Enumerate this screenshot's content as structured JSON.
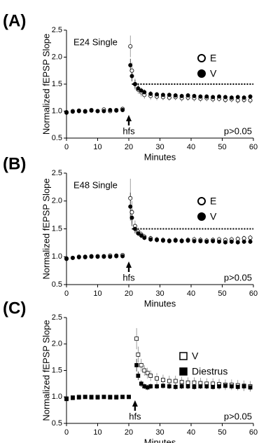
{
  "chart_data": [
    {
      "type": "scatter",
      "panel_label": "(A)",
      "subtitle": "E24 Single",
      "ylabel": "Normalized fEPSP Slope",
      "xlabel": "Minutes",
      "annotation": {
        "text": "hfs",
        "x": 20
      },
      "stat_text": "p>0.05",
      "threshold": 1.5,
      "threshold_xlim": [
        21,
        60
      ],
      "xlim": [
        0,
        60
      ],
      "ylim": [
        0.5,
        2.5
      ],
      "xticks": [
        0,
        10,
        20,
        30,
        40,
        50,
        60
      ],
      "yticks": [
        0.5,
        {
          "value": 1,
          "label": "1.0"
        },
        1.5,
        {
          "value": 2,
          "label": "2.0"
        },
        2.5
      ],
      "x": [
        0,
        2,
        4,
        6,
        8,
        10,
        12,
        14,
        16,
        18,
        20.5,
        21,
        22,
        23,
        24,
        25,
        27,
        29,
        31,
        33,
        35,
        37,
        39,
        41,
        43,
        45,
        47,
        49,
        51,
        53,
        55,
        57,
        59
      ],
      "series": [
        {
          "name": "E",
          "color": "#000000",
          "marker": "circle",
          "filled": false,
          "values": [
            0.98,
            1.0,
            1.01,
            0.99,
            1.02,
            1.0,
            1.03,
            1.0,
            1.02,
            1.04,
            2.2,
            1.75,
            1.5,
            1.4,
            1.35,
            1.3,
            1.28,
            1.27,
            1.26,
            1.25,
            1.26,
            1.24,
            1.25,
            1.24,
            1.23,
            1.24,
            1.22,
            1.23,
            1.21,
            1.22,
            1.2,
            1.21,
            1.2
          ],
          "errors": [
            0.03,
            0.03,
            0.03,
            0.03,
            0.03,
            0.03,
            0.03,
            0.03,
            0.03,
            0.03,
            0.2,
            0.15,
            0.1,
            0.08,
            0.08,
            0.07,
            0.07,
            0.07,
            0.06,
            0.06,
            0.06,
            0.06,
            0.06,
            0.06,
            0.06,
            0.06,
            0.06,
            0.06,
            0.06,
            0.06,
            0.06,
            0.06,
            0.06
          ]
        },
        {
          "name": "V",
          "color": "#000000",
          "marker": "circle",
          "filled": true,
          "values": [
            0.97,
            0.99,
            1.0,
            1.0,
            1.01,
            1.0,
            1.0,
            1.02,
            1.01,
            1.02,
            1.85,
            1.65,
            1.5,
            1.42,
            1.38,
            1.35,
            1.32,
            1.31,
            1.3,
            1.3,
            1.29,
            1.28,
            1.29,
            1.28,
            1.27,
            1.27,
            1.26,
            1.27,
            1.26,
            1.25,
            1.26,
            1.25,
            1.27
          ],
          "errors": [
            0.02,
            0.02,
            0.02,
            0.02,
            0.02,
            0.02,
            0.02,
            0.02,
            0.02,
            0.02,
            0.12,
            0.1,
            0.08,
            0.06,
            0.05,
            0.05,
            0.05,
            0.04,
            0.04,
            0.04,
            0.04,
            0.04,
            0.04,
            0.04,
            0.04,
            0.04,
            0.04,
            0.04,
            0.04,
            0.04,
            0.04,
            0.04,
            0.04
          ]
        }
      ]
    },
    {
      "type": "scatter",
      "panel_label": "(B)",
      "subtitle": "E48 Single",
      "ylabel": "Normalized fEPSP Slope",
      "xlabel": "Minutes",
      "annotation": {
        "text": "hfs",
        "x": 20
      },
      "stat_text": "p>0.05",
      "threshold": 1.5,
      "threshold_xlim": [
        21,
        60
      ],
      "xlim": [
        0,
        60
      ],
      "ylim": [
        0.5,
        2.5
      ],
      "xticks": [
        0,
        10,
        20,
        30,
        40,
        50,
        60
      ],
      "yticks": [
        0.5,
        {
          "value": 1,
          "label": "1.0"
        },
        1.5,
        {
          "value": 2,
          "label": "2.0"
        },
        2.5
      ],
      "x": [
        0,
        2,
        4,
        6,
        8,
        10,
        12,
        14,
        16,
        18,
        20.5,
        21,
        22,
        23,
        24,
        25,
        27,
        29,
        31,
        33,
        35,
        37,
        39,
        41,
        43,
        45,
        47,
        49,
        51,
        53,
        55,
        57,
        59
      ],
      "series": [
        {
          "name": "E",
          "color": "#000000",
          "marker": "circle",
          "filled": false,
          "values": [
            0.97,
            0.98,
            1.0,
            0.99,
            1.0,
            1.01,
            1.0,
            1.02,
            1.01,
            1.03,
            2.05,
            1.8,
            1.55,
            1.45,
            1.4,
            1.36,
            1.33,
            1.31,
            1.3,
            1.29,
            1.3,
            1.29,
            1.3,
            1.31,
            1.3,
            1.29,
            1.3,
            1.31,
            1.3,
            1.31,
            1.32,
            1.33,
            1.34
          ],
          "errors": [
            0.03,
            0.03,
            0.03,
            0.03,
            0.03,
            0.03,
            0.03,
            0.03,
            0.03,
            0.03,
            0.35,
            0.2,
            0.1,
            0.07,
            0.06,
            0.05,
            0.05,
            0.05,
            0.05,
            0.05,
            0.05,
            0.05,
            0.05,
            0.05,
            0.05,
            0.05,
            0.05,
            0.05,
            0.05,
            0.05,
            0.05,
            0.05,
            0.05
          ]
        },
        {
          "name": "V",
          "color": "#000000",
          "marker": "circle",
          "filled": true,
          "values": [
            0.96,
            0.98,
            0.99,
            1.0,
            1.01,
            1.0,
            1.01,
            1.0,
            1.02,
            1.01,
            1.9,
            1.7,
            1.5,
            1.42,
            1.38,
            1.34,
            1.31,
            1.3,
            1.29,
            1.28,
            1.29,
            1.28,
            1.29,
            1.28,
            1.28,
            1.27,
            1.28,
            1.27,
            1.26,
            1.27,
            1.26,
            1.27,
            1.27
          ],
          "errors": [
            0.02,
            0.02,
            0.02,
            0.02,
            0.02,
            0.02,
            0.02,
            0.02,
            0.02,
            0.02,
            0.25,
            0.15,
            0.08,
            0.05,
            0.05,
            0.04,
            0.04,
            0.04,
            0.04,
            0.04,
            0.04,
            0.04,
            0.04,
            0.04,
            0.04,
            0.04,
            0.04,
            0.04,
            0.04,
            0.04,
            0.04,
            0.04,
            0.04
          ]
        }
      ]
    },
    {
      "type": "scatter",
      "panel_label": "(C)",
      "ylabel": "Normalized fEPSP Slope",
      "xlabel": "Minutes",
      "annotation": {
        "text": "hfs",
        "x": 22
      },
      "stat_text": "p>0.05",
      "xlim": [
        0,
        60
      ],
      "ylim": [
        0.5,
        2.5
      ],
      "xticks": [
        0,
        10,
        20,
        30,
        40,
        50,
        60
      ],
      "yticks": [
        0.5,
        {
          "value": 1,
          "label": "1.0"
        },
        1.5,
        {
          "value": 2,
          "label": "2.0"
        },
        2.5
      ],
      "x": [
        0,
        2,
        4,
        6,
        8,
        10,
        12,
        14,
        16,
        18,
        20,
        22.5,
        23,
        24,
        25,
        26,
        27,
        29,
        31,
        33,
        35,
        37,
        39,
        41,
        43,
        45,
        47,
        49,
        51,
        53,
        55,
        57,
        59
      ],
      "series": [
        {
          "name": "V",
          "color": "#000000",
          "marker": "square",
          "filled": false,
          "values": [
            0.97,
            0.99,
            1.0,
            1.0,
            0.99,
            1.0,
            1.0,
            0.99,
            1.0,
            1.0,
            1.0,
            2.1,
            1.8,
            1.6,
            1.5,
            1.45,
            1.4,
            1.35,
            1.32,
            1.3,
            1.3,
            1.28,
            1.27,
            1.27,
            1.26,
            1.25,
            1.25,
            1.24,
            1.23,
            1.23,
            1.22,
            1.21,
            1.2
          ],
          "errors": [
            0.03,
            0.03,
            0.03,
            0.03,
            0.03,
            0.03,
            0.03,
            0.03,
            0.03,
            0.03,
            0.03,
            0.2,
            0.15,
            0.12,
            0.1,
            0.1,
            0.1,
            0.1,
            0.1,
            0.1,
            0.1,
            0.1,
            0.1,
            0.1,
            0.1,
            0.1,
            0.1,
            0.1,
            0.1,
            0.1,
            0.1,
            0.1,
            0.1
          ]
        },
        {
          "name": "Diestrus",
          "color": "#000000",
          "marker": "square",
          "filled": true,
          "values": [
            0.96,
            0.98,
            0.99,
            1.0,
            1.0,
            0.99,
            1.0,
            1.0,
            0.99,
            1.0,
            1.0,
            1.6,
            1.4,
            1.25,
            1.2,
            1.18,
            1.2,
            1.2,
            1.21,
            1.2,
            1.19,
            1.2,
            1.2,
            1.19,
            1.2,
            1.2,
            1.19,
            1.2,
            1.21,
            1.2,
            1.19,
            1.2,
            1.18
          ],
          "errors": [
            0.02,
            0.02,
            0.02,
            0.02,
            0.02,
            0.02,
            0.02,
            0.02,
            0.02,
            0.02,
            0.02,
            0.12,
            0.08,
            0.06,
            0.05,
            0.05,
            0.05,
            0.05,
            0.05,
            0.05,
            0.05,
            0.05,
            0.05,
            0.05,
            0.05,
            0.05,
            0.05,
            0.05,
            0.05,
            0.05,
            0.05,
            0.05,
            0.05
          ]
        }
      ]
    }
  ]
}
